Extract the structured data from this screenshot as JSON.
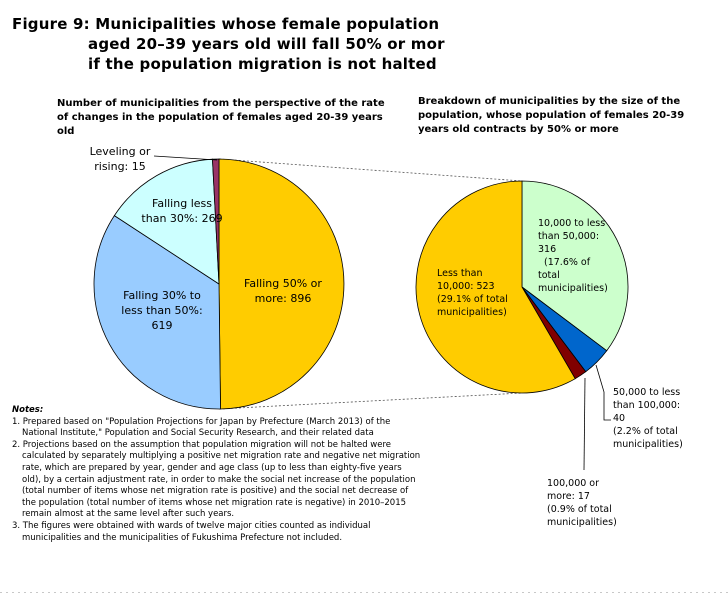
{
  "title": {
    "line1": "Figure 9: Municipalities whose female population",
    "line2": "aged 20–39 years old will fall 50% or mor",
    "line3": "if the population migration is not halted"
  },
  "colors": {
    "orange": "#ffcc00",
    "light_blue": "#99ccff",
    "pale_cyan": "#ccffff",
    "purple": "#993366",
    "light_green": "#ccffcc",
    "blue": "#0066cc",
    "dark_red": "#800000"
  },
  "chart_data": [
    {
      "type": "pie",
      "title": "Number of municipalities from the perspective of the rate of changes in the population of females aged 20-39 years old",
      "slices": [
        {
          "label_lines": [
            "Falling 50% or",
            "more: 896"
          ],
          "value": 896
        },
        {
          "label_lines": [
            "Falling 30% to",
            "less than 50%:",
            "619"
          ],
          "value": 619
        },
        {
          "label_lines": [
            "Falling less",
            "than 30%: 269"
          ],
          "value": 269
        },
        {
          "label_lines": [
            "Leveling or",
            "rising: 15"
          ],
          "value": 15
        }
      ]
    },
    {
      "type": "pie",
      "title": "Breakdown of municipalities by the size of the population, whose population of females 20-39 years old contracts by 50% or more",
      "slices": [
        {
          "label_lines": [
            "10,000 to less",
            "than 50,000:",
            "316",
            "(17.6% of",
            "total",
            "municipalities)"
          ],
          "value": 316
        },
        {
          "label_lines": [
            "50,000 to less",
            "than 100,000:",
            "40",
            "(2.2% of total",
            "municipalities)"
          ],
          "value": 40
        },
        {
          "label_lines": [
            "100,000 or",
            "more: 17",
            "(0.9% of total",
            "municipalities)"
          ],
          "value": 17
        },
        {
          "label_lines": [
            "Less than",
            "10,000: 523",
            "(29.1% of total",
            "municipalities)"
          ],
          "value": 523
        }
      ]
    }
  ],
  "notes": {
    "heading": "Notes:",
    "items": [
      "1. Prepared based on \"Population Projections for Japan by Prefecture (March 2013) of the National Institute,\" Population and Social Security Research, and their related data",
      "2. Projections based on the assumption that population migration will not be halted were calculated by separately multiplying a positive net migration rate and negative net migration rate, which are prepared by year, gender and age class (up to less than eighty-five years old), by a certain adjustment rate, in order to make the social net increase of the population (total number of items whose net migration rate is positive) and the social net decrease of the population (total number of items whose net migration rate is negative) in 2010–2015 remain almost at the same level after such years.",
      "3. The figures were obtained with wards of twelve major cities counted as individual municipalities and the municipalities of Fukushima Prefecture not included."
    ]
  }
}
